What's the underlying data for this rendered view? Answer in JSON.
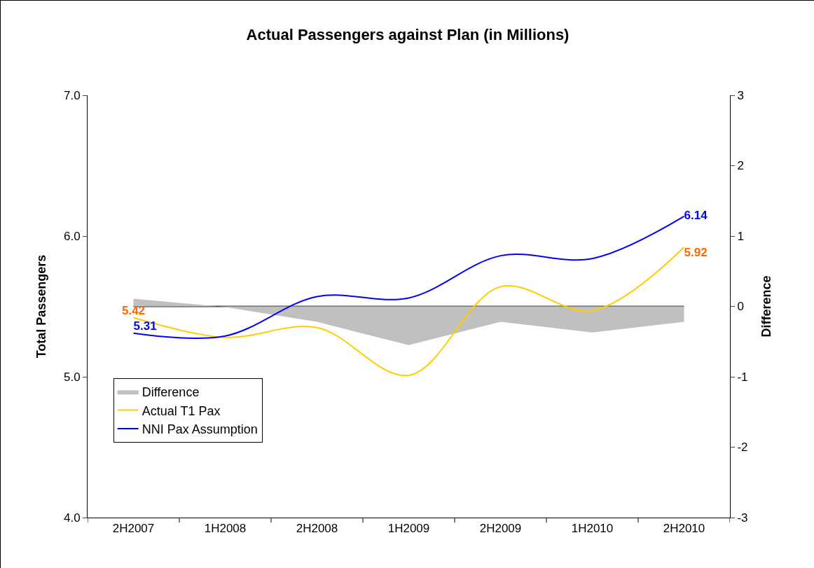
{
  "chart_data": {
    "type": "line",
    "title": "Actual Passengers against Plan (in Millions)",
    "ylabel": "Total Passengers",
    "y2label": "Difference",
    "categories": [
      "2H2007",
      "1H2008",
      "2H2008",
      "1H2009",
      "2H2009",
      "1H2010",
      "2H2010"
    ],
    "series": [
      {
        "name": "Difference",
        "type": "area",
        "axis": "y2",
        "color": "#c0c0c0",
        "values": [
          0.11,
          -0.01,
          -0.22,
          -0.55,
          -0.22,
          -0.37,
          -0.22
        ]
      },
      {
        "name": "Actual T1 Pax",
        "color": "#ffcc00",
        "values": [
          5.42,
          5.28,
          5.35,
          5.01,
          5.64,
          5.47,
          5.92
        ],
        "value_labels": [
          "5.42",
          null,
          null,
          null,
          null,
          null,
          "5.92"
        ]
      },
      {
        "name": "NNI Pax Assumption",
        "color": "#0000ff",
        "values": [
          5.31,
          5.29,
          5.57,
          5.56,
          5.86,
          5.84,
          6.14
        ],
        "value_labels": [
          "5.31",
          null,
          null,
          null,
          null,
          null,
          "6.14"
        ]
      }
    ],
    "ylim": [
      4,
      7
    ],
    "yticks": [
      {
        "value": 4,
        "label": "4.0"
      },
      {
        "value": 5,
        "label": "5.0"
      },
      {
        "value": 6,
        "label": "6.0"
      },
      {
        "value": 7,
        "label": "7.0"
      }
    ],
    "y2lim": [
      -3,
      3
    ],
    "y2ticks": [
      -3,
      -2,
      -1,
      0,
      1,
      2,
      3
    ],
    "ref_lines": [
      {
        "axis": "y2",
        "value": 0,
        "color": "#404040"
      }
    ],
    "legend": "bottom left",
    "grid": false
  }
}
